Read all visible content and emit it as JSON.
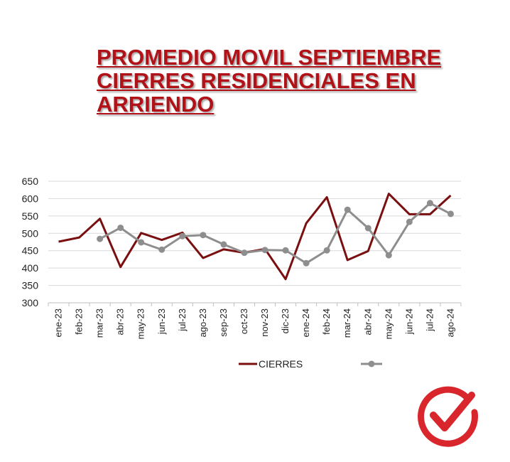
{
  "title": {
    "line1": "PROMEDIO MOVIL  SEPTIEMBRE",
    "line2": "CIERRES RESIDENCIALES EN",
    "line3": "ARRIENDO"
  },
  "colors": {
    "title": "#b01218",
    "series_cierres": "#7a0f10",
    "series_unnamed": "#8e8e8e",
    "logo": "#d9262c"
  },
  "logo": {
    "icon": "check-mark-circle-icon"
  },
  "chart_data": {
    "type": "line",
    "title": "PROMEDIO MOVIL  SEPTIEMBRE CIERRES RESIDENCIALES EN ARRIENDO",
    "categories": [
      "ene-23",
      "feb-23",
      "mar-23",
      "abr-23",
      "may-23",
      "jun-23",
      "jul-23",
      "ago-23",
      "sep-23",
      "oct-23",
      "nov-23",
      "dic-23",
      "ene-24",
      "feb-24",
      "mar-24",
      "abr-24",
      "may-24",
      "jun-24",
      "jul-24",
      "ago-24"
    ],
    "series": [
      {
        "name": "CIERRES",
        "marker": "none",
        "values": [
          476,
          488,
          542,
          403,
          501,
          481,
          502,
          429,
          454,
          444,
          455,
          368,
          529,
          604,
          423,
          449,
          614,
          555,
          555,
          609
        ]
      },
      {
        "name": "",
        "marker": "circle",
        "values": [
          null,
          null,
          484,
          516,
          474,
          453,
          492,
          495,
          468,
          444,
          452,
          451,
          414,
          451,
          568,
          515,
          437,
          533,
          587,
          556
        ]
      }
    ],
    "xlabel": "",
    "ylabel": "",
    "ylim": [
      300,
      650
    ],
    "yticks": [
      300,
      350,
      400,
      450,
      500,
      550,
      600,
      650
    ],
    "grid": true,
    "legend": "bottom"
  }
}
